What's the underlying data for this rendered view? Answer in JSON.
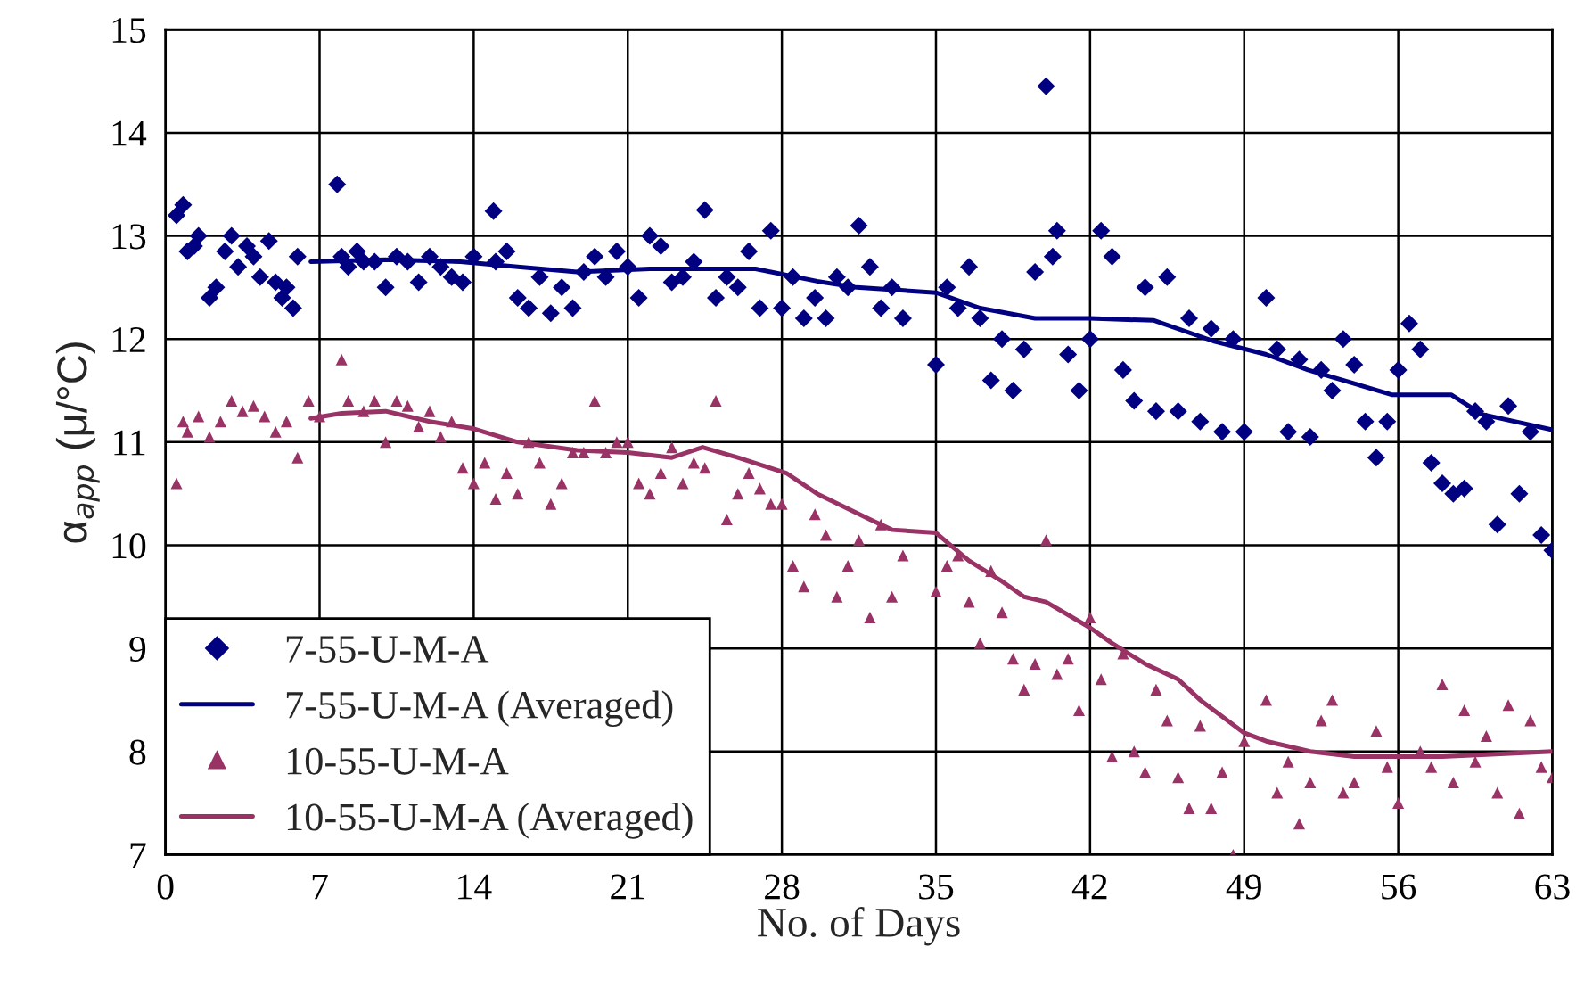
{
  "chart_data": {
    "type": "scatter",
    "xlabel": "No. of Days",
    "ylabel": "α$_{app}$ (μ/°C)",
    "xlim": [
      0,
      63
    ],
    "xticks": [
      0,
      7,
      14,
      21,
      28,
      35,
      42,
      49,
      56,
      63
    ],
    "ylim": [
      7,
      15
    ],
    "yticks": [
      7,
      8,
      9,
      10,
      11,
      12,
      13,
      14,
      15
    ],
    "grid": true,
    "legend": "bottom left",
    "series": [
      {
        "name": "7-55-U-M-A",
        "marker": "diamond",
        "color": "#000080",
        "x": [
          0.5,
          0.8,
          1,
          1.3,
          1.5,
          2,
          2.3,
          2.7,
          3,
          3.3,
          3.7,
          4,
          4.3,
          4.7,
          5,
          5.3,
          5.5,
          5.8,
          6,
          7.8,
          8,
          8.3,
          8.7,
          9,
          9.5,
          10,
          10.5,
          11,
          11.5,
          12,
          12.5,
          13,
          13.5,
          14,
          14.9,
          15,
          15.5,
          16,
          16.5,
          17,
          17.5,
          18,
          18.5,
          19,
          19.5,
          20,
          20.5,
          21,
          21.5,
          22,
          22.5,
          23,
          23.5,
          24,
          24.5,
          25,
          25.5,
          26,
          26.5,
          27,
          27.5,
          28,
          28.5,
          29,
          29.5,
          30,
          30.5,
          31,
          31.5,
          32,
          32.5,
          33,
          33.5,
          35,
          35.5,
          36,
          36.5,
          37,
          37.5,
          38,
          38.5,
          39,
          39.5,
          40,
          40.3,
          40.5,
          41,
          41.5,
          42,
          42.5,
          43,
          43.5,
          44,
          44.5,
          45,
          45.5,
          46,
          46.5,
          47,
          47.5,
          48,
          48.5,
          49,
          50,
          50.5,
          51,
          51.5,
          52,
          52.5,
          53,
          53.5,
          54,
          54.5,
          55,
          55.5,
          56,
          56.5,
          57,
          57.5,
          58,
          58.5,
          59,
          59.5,
          60,
          60.5,
          61,
          61.5,
          62,
          62.5,
          63
        ],
        "values": [
          13.2,
          13.3,
          12.85,
          12.9,
          13.0,
          12.4,
          12.5,
          12.85,
          13.0,
          12.7,
          12.9,
          12.8,
          12.6,
          12.95,
          12.55,
          12.4,
          12.5,
          12.3,
          12.8,
          13.5,
          12.8,
          12.7,
          12.85,
          12.75,
          12.75,
          12.5,
          12.8,
          12.75,
          12.55,
          12.8,
          12.7,
          12.6,
          12.55,
          12.8,
          13.24,
          12.75,
          12.85,
          12.4,
          12.3,
          12.6,
          12.25,
          12.5,
          12.3,
          12.65,
          12.8,
          12.6,
          12.85,
          12.7,
          12.4,
          13.0,
          12.9,
          12.55,
          12.6,
          12.75,
          13.25,
          12.4,
          12.6,
          12.5,
          12.85,
          12.3,
          13.05,
          12.3,
          12.6,
          12.2,
          12.4,
          12.2,
          12.6,
          12.5,
          13.1,
          12.7,
          12.3,
          12.5,
          12.2,
          11.75,
          12.5,
          12.3,
          12.7,
          12.2,
          11.6,
          12.0,
          11.5,
          11.9,
          12.65,
          14.45,
          12.8,
          13.05,
          11.85,
          11.5,
          12.0,
          13.05,
          12.8,
          11.7,
          11.4,
          12.5,
          11.3,
          12.6,
          11.3,
          12.2,
          11.2,
          12.1,
          11.1,
          12.0,
          11.1,
          12.4,
          11.9,
          11.1,
          11.8,
          11.05,
          11.7,
          11.5,
          12.0,
          11.75,
          11.2,
          10.85,
          11.2,
          11.7,
          12.15,
          11.9,
          10.8,
          10.6,
          10.5,
          10.55,
          11.3,
          11.2,
          10.2,
          11.35,
          10.5,
          11.1,
          10.1,
          9.95
        ]
      },
      {
        "name": "7-55-U-M-A (Averaged)",
        "type": "line",
        "color": "#000080",
        "x": [
          6.6,
          10,
          13.4,
          16,
          18.7,
          22,
          26.8,
          29.6,
          31.4,
          35,
          37,
          39.5,
          42,
          44.9,
          47.6,
          50,
          51.9,
          55.7,
          58.4,
          59.8,
          63
        ],
        "values": [
          12.75,
          12.77,
          12.75,
          12.7,
          12.65,
          12.68,
          12.68,
          12.56,
          12.5,
          12.45,
          12.3,
          12.2,
          12.2,
          12.18,
          11.98,
          11.85,
          11.7,
          11.46,
          11.46,
          11.27,
          11.12
        ]
      },
      {
        "name": "10-55-U-M-A",
        "marker": "triangle",
        "color": "#993366",
        "x": [
          0.5,
          0.8,
          1,
          1.5,
          2,
          2.5,
          3,
          3.5,
          4,
          4.5,
          5,
          5.5,
          6,
          6.5,
          7,
          8,
          8.3,
          9,
          9.5,
          10,
          10.5,
          11,
          11.5,
          12,
          12.5,
          13,
          13.5,
          14,
          14.5,
          15,
          15.5,
          16,
          16.5,
          17,
          17.5,
          18,
          18.5,
          19,
          19.5,
          20,
          20.5,
          21,
          21.5,
          22,
          22.5,
          23,
          23.5,
          24,
          24.5,
          25,
          25.5,
          26,
          26.5,
          27,
          27.5,
          28,
          28.5,
          29,
          29.5,
          30,
          30.5,
          31,
          31.5,
          32,
          32.5,
          33,
          33.5,
          35,
          35.5,
          36,
          36.5,
          37,
          37.5,
          38,
          38.5,
          39,
          39.5,
          40,
          40.5,
          41,
          41.5,
          42,
          42.5,
          43,
          43.5,
          44,
          44.5,
          45,
          45.5,
          46,
          46.5,
          47,
          47.5,
          48,
          48.5,
          49,
          50,
          50.5,
          51,
          51.5,
          52,
          52.5,
          53,
          53.5,
          54,
          55,
          55.5,
          56,
          57,
          57.5,
          58,
          58.5,
          59,
          59.5,
          60,
          60.5,
          61,
          61.5,
          62,
          62.5,
          63
        ],
        "values": [
          10.6,
          11.2,
          11.1,
          11.25,
          11.05,
          11.2,
          11.4,
          11.3,
          11.35,
          11.25,
          11.1,
          11.2,
          10.85,
          11.4,
          11.25,
          11.8,
          11.4,
          11.3,
          11.4,
          11.0,
          11.4,
          11.35,
          11.15,
          11.3,
          11.05,
          11.2,
          10.75,
          10.6,
          10.8,
          10.45,
          10.7,
          10.5,
          11.0,
          10.8,
          10.4,
          10.6,
          10.9,
          10.9,
          11.4,
          10.9,
          11.0,
          11.0,
          10.6,
          10.5,
          10.7,
          10.95,
          10.6,
          10.8,
          10.75,
          11.4,
          10.25,
          10.5,
          10.7,
          10.55,
          10.4,
          10.4,
          9.8,
          9.6,
          10.3,
          10.1,
          9.5,
          9.8,
          10.05,
          9.3,
          10.2,
          9.5,
          9.9,
          9.55,
          9.8,
          9.9,
          9.45,
          9.05,
          9.75,
          9.35,
          8.9,
          8.6,
          8.85,
          10.05,
          8.75,
          8.9,
          8.4,
          9.3,
          8.7,
          7.95,
          8.95,
          8.0,
          7.8,
          8.6,
          8.3,
          7.75,
          7.45,
          8.25,
          7.45,
          7.8,
          7.0,
          8.1,
          8.5,
          7.6,
          7.9,
          7.3,
          7.7,
          8.3,
          8.5,
          7.6,
          7.7,
          8.2,
          7.85,
          7.5,
          8.0,
          7.85,
          8.65,
          7.7,
          8.4,
          7.9,
          8.15,
          7.6,
          8.45,
          7.4,
          8.3,
          7.85,
          7.75
        ]
      },
      {
        "name": "10-55-U-M-A (Averaged)",
        "type": "line",
        "color": "#993366",
        "x": [
          6.6,
          8,
          10,
          12,
          14,
          16,
          18.7,
          21,
          23,
          24.4,
          26,
          28.2,
          29.6,
          32,
          33,
          35,
          36.5,
          38,
          39,
          40,
          42,
          43,
          44.5,
          46,
          47,
          49,
          50,
          52,
          54,
          56,
          58,
          60,
          63
        ],
        "values": [
          11.23,
          11.28,
          11.3,
          11.2,
          11.13,
          11.0,
          10.92,
          10.9,
          10.85,
          10.95,
          10.85,
          10.7,
          10.5,
          10.25,
          10.15,
          10.12,
          9.85,
          9.65,
          9.5,
          9.45,
          9.2,
          9.05,
          8.85,
          8.7,
          8.5,
          8.18,
          8.1,
          8.0,
          7.95,
          7.95,
          7.95,
          7.97,
          8.0
        ]
      }
    ]
  }
}
